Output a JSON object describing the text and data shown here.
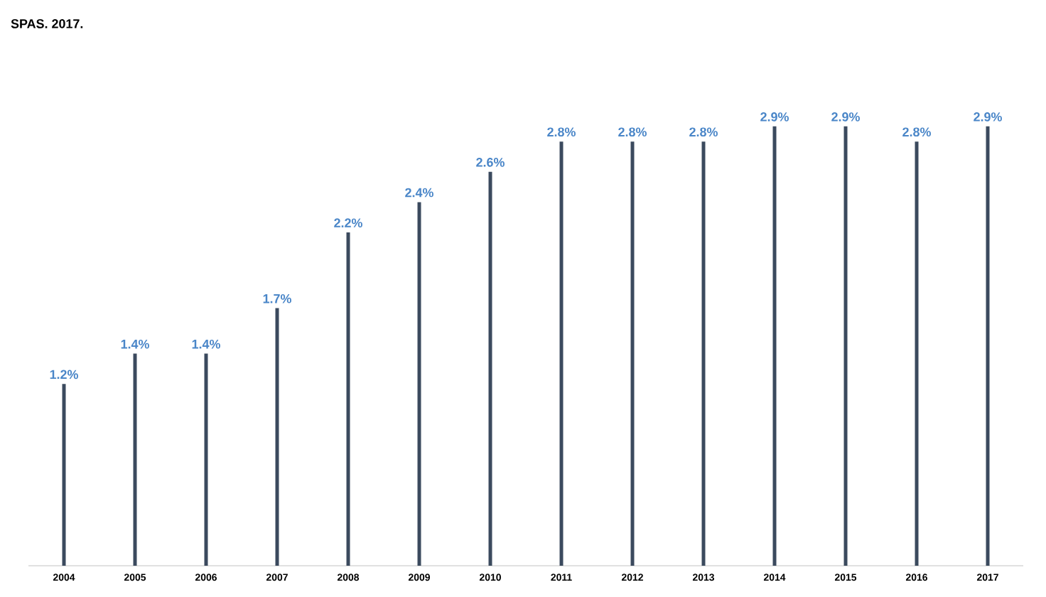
{
  "chart_data": {
    "type": "bar",
    "categories": [
      "2004",
      "2005",
      "2006",
      "2007",
      "2008",
      "2009",
      "2010",
      "2011",
      "2012",
      "2013",
      "2014",
      "2015",
      "2016",
      "2017"
    ],
    "values": [
      1.2,
      1.4,
      1.4,
      1.7,
      2.2,
      2.4,
      2.6,
      2.8,
      2.8,
      2.8,
      2.9,
      2.9,
      2.8,
      2.9
    ],
    "value_labels": [
      "1.2%",
      "1.4%",
      "1.4%",
      "1.7%",
      "2.2%",
      "2.4%",
      "2.6%",
      "2.8%",
      "2.8%",
      "2.8%",
      "2.9%",
      "2.9%",
      "2.8%",
      "2.9%"
    ],
    "color": "#3b4a5e",
    "annotations": [
      "SPAS. 2017."
    ]
  }
}
